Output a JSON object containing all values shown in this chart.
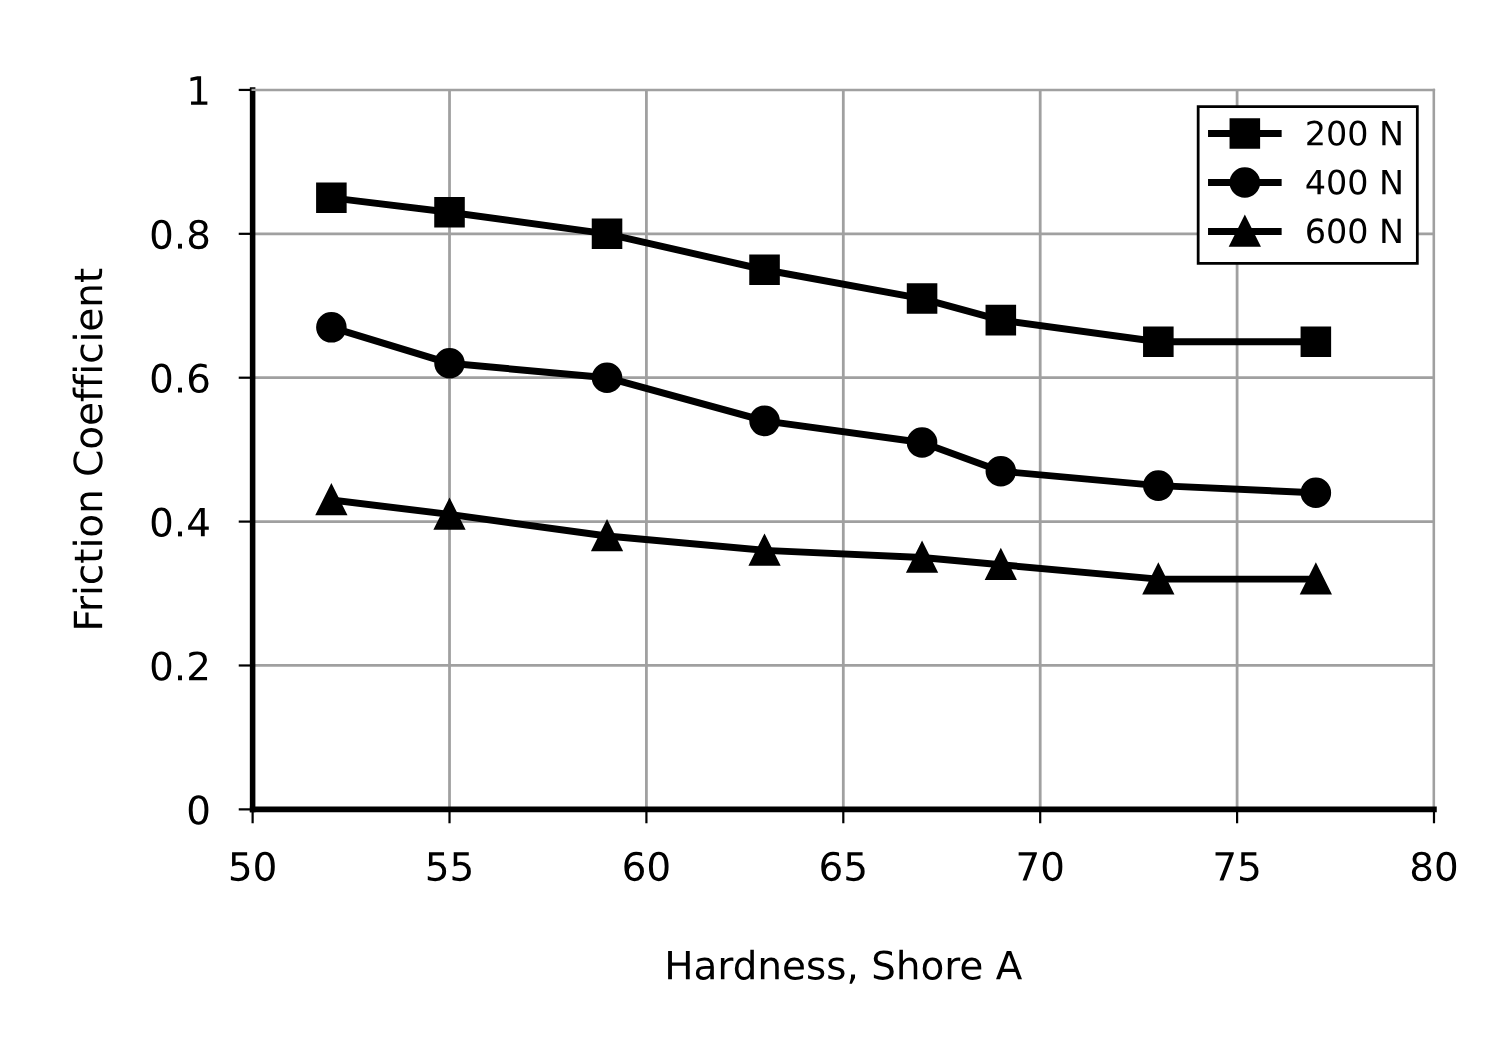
{
  "chart_data": {
    "type": "line",
    "xlabel": "Hardness, Shore A",
    "ylabel": "Friction Coefficient",
    "x": [
      52,
      55,
      59,
      63,
      67,
      69,
      73,
      77
    ],
    "series": [
      {
        "name": "200 N",
        "color": "#000000",
        "marker": "square",
        "values": [
          0.85,
          0.83,
          0.8,
          0.75,
          0.71,
          0.68,
          0.65,
          0.65
        ]
      },
      {
        "name": "400 N",
        "color": "#000000",
        "marker": "circle",
        "values": [
          0.67,
          0.62,
          0.6,
          0.54,
          0.51,
          0.47,
          0.45,
          0.44
        ]
      },
      {
        "name": "600 N",
        "color": "#000000",
        "marker": "triangle",
        "values": [
          0.43,
          0.41,
          0.38,
          0.36,
          0.35,
          0.34,
          0.32,
          0.32
        ]
      }
    ],
    "xlim": [
      50,
      80
    ],
    "xticks": [
      50,
      55,
      60,
      65,
      70,
      75,
      80
    ],
    "ylim": [
      0,
      1
    ],
    "yticks": [
      0,
      0.2,
      0.4,
      0.6,
      0.8,
      1
    ],
    "grid": true,
    "legend": "top right",
    "line_style": "solid"
  }
}
